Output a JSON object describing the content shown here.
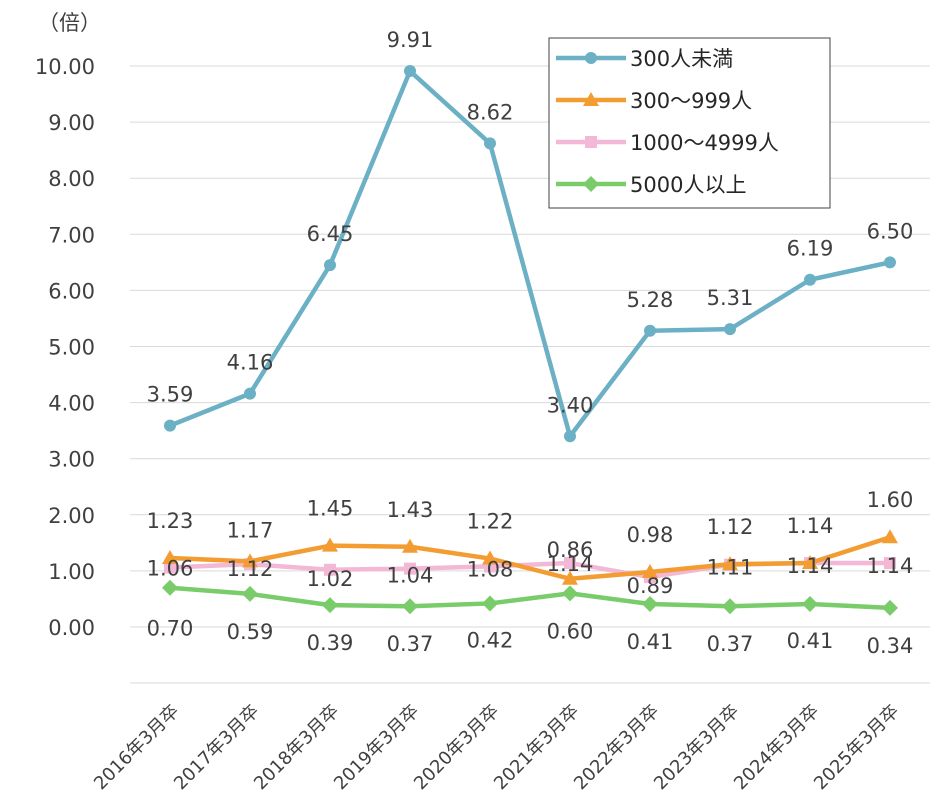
{
  "chart_data": {
    "type": "line",
    "unit_label": "（倍）",
    "categories": [
      "2016年3月卒",
      "2017年3月卒",
      "2018年3月卒",
      "2019年3月卒",
      "2020年3月卒",
      "2021年3月卒",
      "2022年3月卒",
      "2023年3月卒",
      "2024年3月卒",
      "2025年3月卒"
    ],
    "ylim": [
      0,
      10
    ],
    "yticks": [
      "0.00",
      "1.00",
      "2.00",
      "3.00",
      "4.00",
      "5.00",
      "6.00",
      "7.00",
      "8.00",
      "9.00",
      "10.00"
    ],
    "grid": true,
    "legend_position": "top-right",
    "series": [
      {
        "name": "300人未満",
        "color": "#6cb0c5",
        "marker": "circle",
        "values": [
          3.59,
          4.16,
          6.45,
          9.91,
          8.62,
          3.4,
          5.28,
          5.31,
          6.19,
          6.5
        ],
        "labels": [
          "3.59",
          "4.16",
          "6.45",
          "9.91",
          "8.62",
          "3.40",
          "5.28",
          "5.31",
          "6.19",
          "6.50"
        ]
      },
      {
        "name": "300～999人",
        "color": "#f39c32",
        "marker": "triangle",
        "values": [
          1.23,
          1.17,
          1.45,
          1.43,
          1.22,
          0.86,
          0.98,
          1.12,
          1.14,
          1.6
        ],
        "labels": [
          "1.23",
          "1.17",
          "1.45",
          "1.43",
          "1.22",
          "0.86",
          "0.98",
          "1.12",
          "1.14",
          "1.60"
        ]
      },
      {
        "name": "1000～4999人",
        "color": "#f2b8d6",
        "marker": "square",
        "values": [
          1.06,
          1.12,
          1.02,
          1.04,
          1.08,
          1.14,
          0.89,
          1.11,
          1.14,
          1.14
        ],
        "labels": [
          "1.06",
          "1.12",
          "1.02",
          "1.04",
          "1.08",
          "1.14",
          "0.89",
          "1.11",
          "1.14",
          "1.14"
        ]
      },
      {
        "name": "5000人以上",
        "color": "#7acc6a",
        "marker": "diamond",
        "values": [
          0.7,
          0.59,
          0.39,
          0.37,
          0.42,
          0.6,
          0.41,
          0.37,
          0.41,
          0.34
        ],
        "labels": [
          "0.70",
          "0.59",
          "0.39",
          "0.37",
          "0.42",
          "0.60",
          "0.41",
          "0.37",
          "0.41",
          "0.34"
        ]
      }
    ]
  }
}
